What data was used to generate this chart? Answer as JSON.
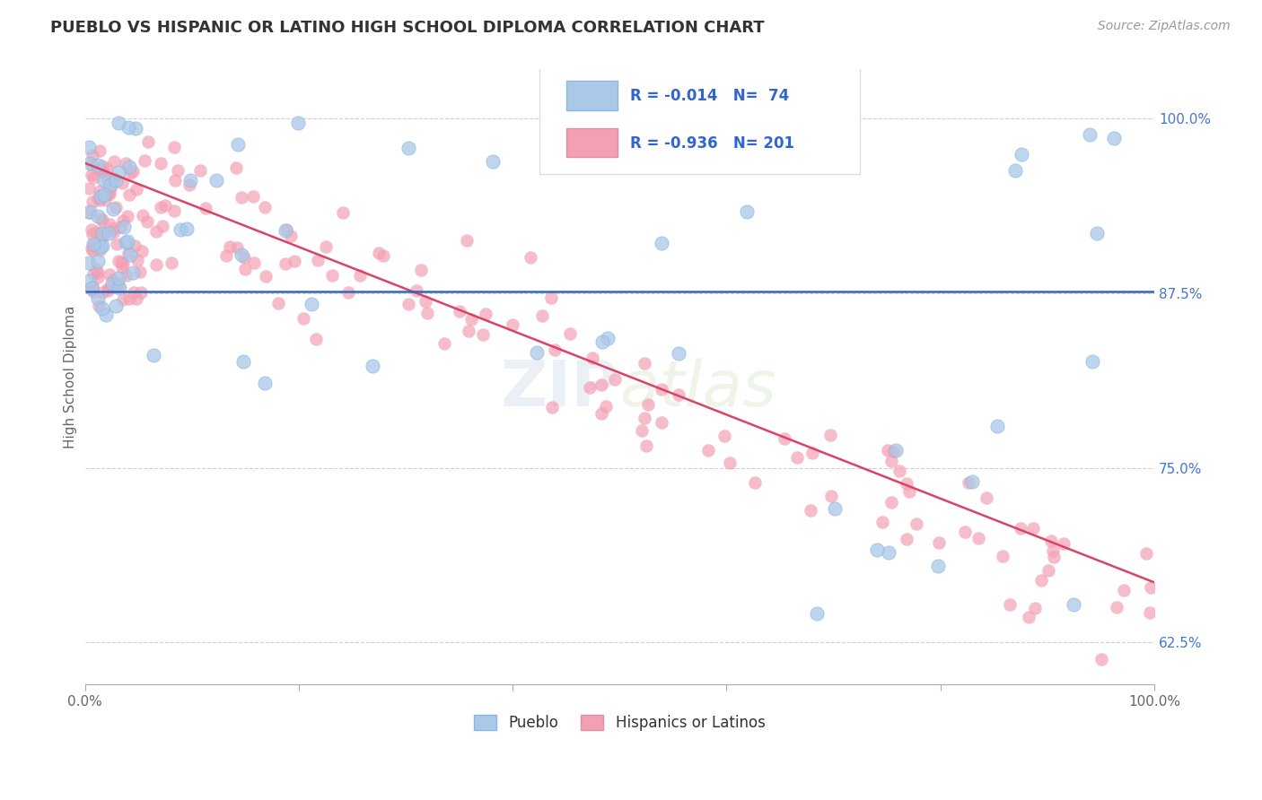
{
  "title": "PUEBLO VS HISPANIC OR LATINO HIGH SCHOOL DIPLOMA CORRELATION CHART",
  "source": "Source: ZipAtlas.com",
  "ylabel": "High School Diploma",
  "legend_blue_r": "-0.014",
  "legend_blue_n": "74",
  "legend_pink_r": "-0.936",
  "legend_pink_n": "201",
  "xlim": [
    0.0,
    1.0
  ],
  "ylim": [
    0.595,
    1.035
  ],
  "yticks": [
    0.625,
    0.75,
    0.875,
    1.0
  ],
  "ytick_labels": [
    "62.5%",
    "75.0%",
    "87.5%",
    "100.0%"
  ],
  "blue_color": "#aac8e8",
  "pink_color": "#f4a0b4",
  "blue_line_color": "#3366bb",
  "pink_line_color": "#d94466",
  "background_color": "#ffffff",
  "grid_color": "#cccccc",
  "title_color": "#333333",
  "right_label_color": "#4477cc",
  "legend_r_color": "#3366cc",
  "blue_line_y": 0.876,
  "pink_line_start_y": 0.968,
  "pink_line_end_y": 0.668
}
